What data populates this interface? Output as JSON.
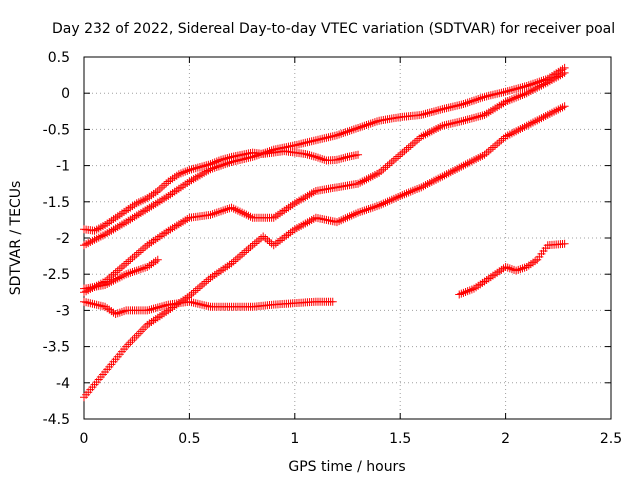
{
  "chart_data": {
    "type": "scatter",
    "title": "Day 232 of 2022, Sidereal Day-to-day VTEC variation (SDTVAR) for receiver poal",
    "xlabel": "GPS time / hours",
    "ylabel": "SDTVAR / TECUs",
    "xlim": [
      0,
      2.5
    ],
    "ylim": [
      -4.5,
      0.5
    ],
    "x_ticks": [
      "0",
      "0.5",
      "1",
      "1.5",
      "2",
      "2.5"
    ],
    "y_ticks": [
      "0.5",
      "0",
      "-0.5",
      "-1",
      "-1.5",
      "-2",
      "-2.5",
      "-3",
      "-3.5",
      "-4",
      "-4.5"
    ],
    "grid": true,
    "marker": "+",
    "marker_color": "#ff0000",
    "series": [
      {
        "x": [
          0.0,
          0.1,
          0.2,
          0.3,
          0.4,
          0.5,
          0.6,
          0.7,
          0.8,
          0.9,
          1.0,
          1.1,
          1.2,
          1.3,
          1.4,
          1.5,
          1.6,
          1.7,
          1.8,
          1.9,
          2.0,
          2.1,
          2.2,
          2.28
        ],
        "y": [
          -2.1,
          -1.95,
          -1.78,
          -1.6,
          -1.42,
          -1.22,
          -1.05,
          -0.95,
          -0.88,
          -0.78,
          -0.72,
          -0.65,
          -0.58,
          -0.48,
          -0.38,
          -0.33,
          -0.3,
          -0.22,
          -0.15,
          -0.05,
          0.02,
          0.1,
          0.2,
          0.35
        ]
      },
      {
        "x": [
          0.0,
          0.05,
          0.1,
          0.15,
          0.2,
          0.25,
          0.3,
          0.35,
          0.4,
          0.45,
          0.5,
          0.55,
          0.6,
          0.65,
          0.7,
          0.75,
          0.8,
          0.85,
          0.9,
          0.95,
          1.0,
          1.05,
          1.1,
          1.15,
          1.2,
          1.25,
          1.3
        ],
        "y": [
          -1.88,
          -1.9,
          -1.82,
          -1.72,
          -1.62,
          -1.52,
          -1.45,
          -1.35,
          -1.22,
          -1.12,
          -1.06,
          -1.02,
          -0.98,
          -0.92,
          -0.88,
          -0.85,
          -0.82,
          -0.84,
          -0.82,
          -0.8,
          -0.82,
          -0.84,
          -0.88,
          -0.93,
          -0.92,
          -0.88,
          -0.85
        ]
      },
      {
        "x": [
          0.0,
          0.1,
          0.2,
          0.3,
          0.4,
          0.5,
          0.6,
          0.7,
          0.8,
          0.9,
          1.0,
          1.1,
          1.2,
          1.3,
          1.4,
          1.5,
          1.6,
          1.7,
          1.8,
          1.9,
          2.0,
          2.1,
          2.2,
          2.28
        ],
        "y": [
          -2.75,
          -2.6,
          -2.35,
          -2.1,
          -1.9,
          -1.72,
          -1.68,
          -1.58,
          -1.72,
          -1.72,
          -1.52,
          -1.35,
          -1.3,
          -1.25,
          -1.1,
          -0.85,
          -0.6,
          -0.45,
          -0.38,
          -0.3,
          -0.12,
          0.0,
          0.15,
          0.28
        ]
      },
      {
        "x": [
          0.0,
          0.1,
          0.2,
          0.3,
          0.35
        ],
        "y": [
          -2.7,
          -2.65,
          -2.5,
          -2.4,
          -2.3
        ]
      },
      {
        "x": [
          0.0,
          0.1,
          0.15,
          0.2,
          0.3,
          0.4,
          0.5,
          0.6,
          0.7,
          0.8,
          0.9,
          1.0,
          1.1,
          1.18
        ],
        "y": [
          -2.88,
          -2.95,
          -3.05,
          -3.0,
          -3.0,
          -2.92,
          -2.88,
          -2.95,
          -2.95,
          -2.95,
          -2.92,
          -2.9,
          -2.88,
          -2.88
        ]
      },
      {
        "x": [
          0.0,
          0.1,
          0.2,
          0.3,
          0.4,
          0.5,
          0.6,
          0.7,
          0.8,
          0.85,
          0.9,
          1.0,
          1.1,
          1.2,
          1.3,
          1.4,
          1.5,
          1.6,
          1.7,
          1.8,
          1.9,
          2.0,
          2.1,
          2.2,
          2.28
        ],
        "y": [
          -4.2,
          -3.85,
          -3.5,
          -3.2,
          -3.0,
          -2.8,
          -2.55,
          -2.35,
          -2.1,
          -1.98,
          -2.1,
          -1.88,
          -1.72,
          -1.78,
          -1.65,
          -1.55,
          -1.42,
          -1.3,
          -1.15,
          -1.0,
          -0.85,
          -0.6,
          -0.45,
          -0.3,
          -0.18
        ]
      },
      {
        "x": [
          1.78,
          1.85,
          1.9,
          1.95,
          2.0,
          2.05,
          2.1,
          2.15,
          2.2,
          2.28
        ],
        "y": [
          -2.78,
          -2.7,
          -2.6,
          -2.5,
          -2.4,
          -2.45,
          -2.4,
          -2.3,
          -2.1,
          -2.08
        ]
      }
    ]
  }
}
